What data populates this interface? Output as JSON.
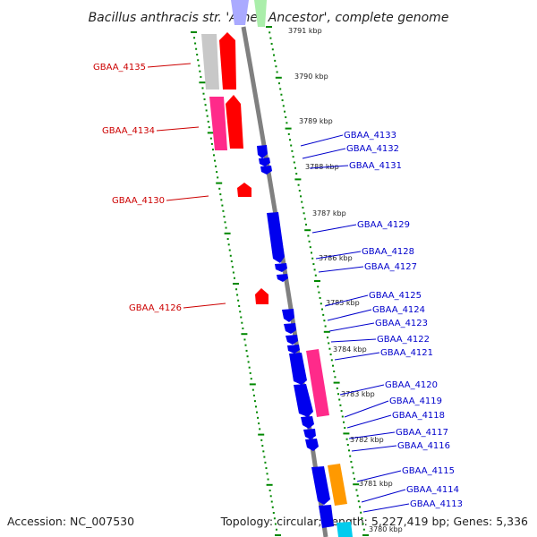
{
  "title": "Bacillus anthracis str. 'Ames Ancestor', complete genome",
  "accession_text": "Accession: NC_007530",
  "summary_text": "Topology: circular; Length: 5,227,419 bp; Genes: 5,336",
  "colors": {
    "backbone": "#808080",
    "tick": "#008800",
    "red_label": "#cc0000",
    "blue_label": "#0000cc",
    "red_gene": "#ff0000",
    "blue_gene": "#0000ee",
    "pink_gene": "#ff2a8a",
    "gray_gene": "#c8c8c8",
    "orange_gene": "#ff9900",
    "cyan_gene": "#00ccee"
  },
  "kbp_labels": [
    "3791 kbp",
    "3790 kbp",
    "3789 kbp",
    "3788 kbp",
    "3787 kbp",
    "3786 kbp",
    "3785 kbp",
    "3784 kbp",
    "3783 kbp",
    "3782 kbp",
    "3781 kbp",
    "3780 kbp"
  ],
  "left_genes": [
    "GBAA_4135",
    "GBAA_4134",
    "GBAA_4130",
    "GBAA_4126"
  ],
  "right_genes": [
    "GBAA_4133",
    "GBAA_4132",
    "GBAA_4131",
    "GBAA_4129",
    "GBAA_4128",
    "GBAA_4127",
    "GBAA_4125",
    "GBAA_4124",
    "GBAA_4123",
    "GBAA_4122",
    "GBAA_4121",
    "GBAA_4120",
    "GBAA_4119",
    "GBAA_4118",
    "GBAA_4117",
    "GBAA_4116",
    "GBAA_4115",
    "GBAA_4114",
    "GBAA_4113"
  ]
}
